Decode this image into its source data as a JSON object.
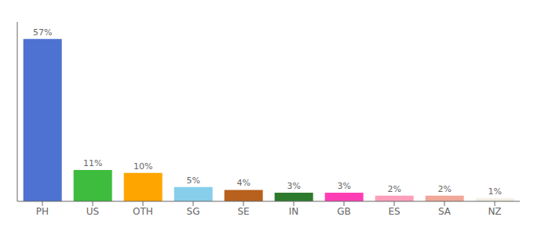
{
  "chart_data": {
    "type": "bar",
    "categories": [
      "PH",
      "US",
      "OTH",
      "SG",
      "SE",
      "IN",
      "GB",
      "ES",
      "SA",
      "NZ"
    ],
    "values": [
      57,
      11,
      10,
      5,
      4,
      3,
      3,
      2,
      2,
      1
    ],
    "value_labels": [
      "57%",
      "11%",
      "10%",
      "5%",
      "4%",
      "3%",
      "3%",
      "2%",
      "2%",
      "1%"
    ],
    "colors": [
      "#4d72d1",
      "#3ebc3e",
      "#ffa500",
      "#87CEEB",
      "#b8601e",
      "#2d7a2d",
      "#ff3eb5",
      "#ff9fbb",
      "#f0a898",
      "#f0ede0"
    ],
    "ylim": [
      0,
      63
    ],
    "data_labels": true,
    "tick_labels": "x",
    "grid": false
  }
}
